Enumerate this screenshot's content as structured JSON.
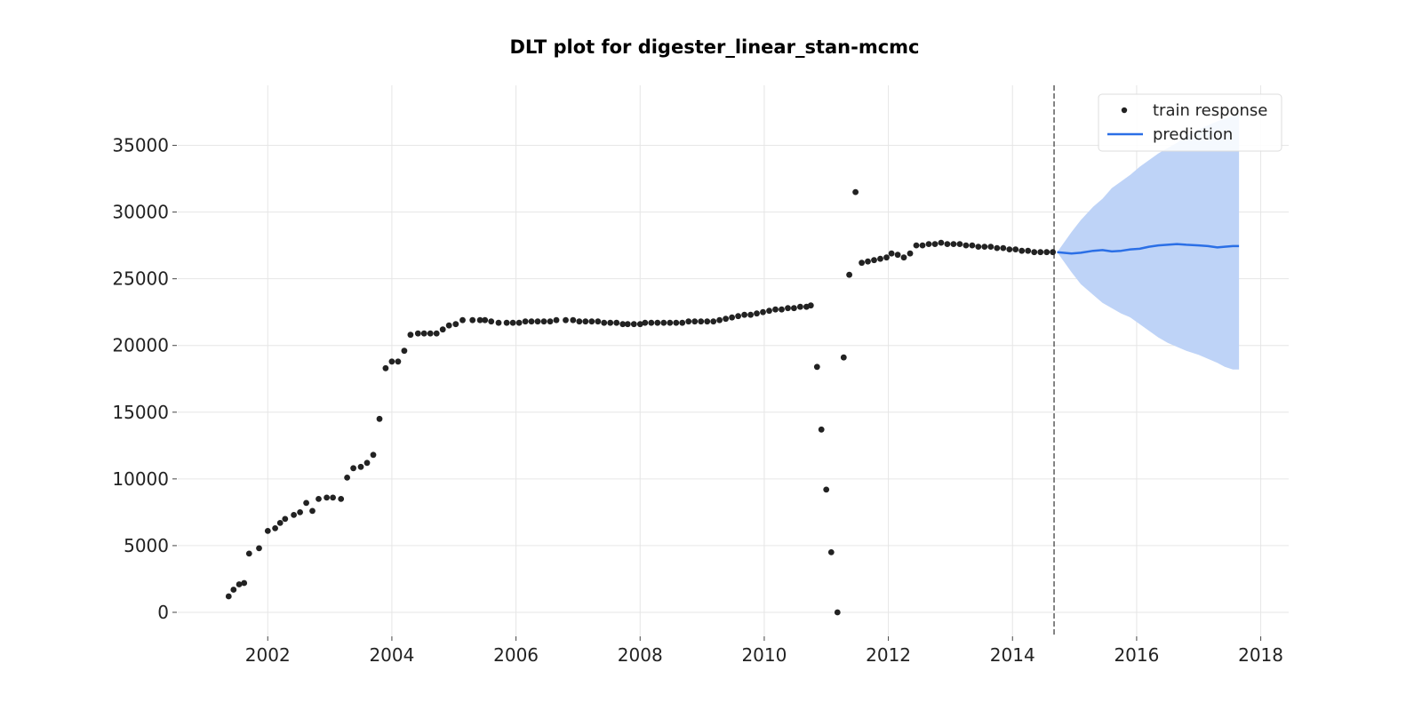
{
  "chart_data": {
    "type": "scatter",
    "title": "DLT plot for digester_linear_stan-mcmc",
    "xlabel": "",
    "ylabel": "",
    "xlim": [
      2000.55,
      2018.45
    ],
    "ylim": [
      -1800,
      39500
    ],
    "x_ticks": [
      2002,
      2004,
      2006,
      2008,
      2010,
      2012,
      2014,
      2016,
      2018
    ],
    "y_ticks": [
      0,
      5000,
      10000,
      15000,
      20000,
      25000,
      30000,
      35000
    ],
    "grid": true,
    "legend_position": "top-right",
    "train_end_x": 2014.67,
    "colors": {
      "train_points": "#222222",
      "prediction_line": "#2b6fe6",
      "prediction_band": "#bed3f7",
      "grid": "#e6e6e6",
      "cutoff_line": "#666666"
    },
    "series": [
      {
        "name": "train response",
        "kind": "scatter",
        "x": [
          2001.37,
          2001.45,
          2001.54,
          2001.62,
          2001.7,
          2001.86,
          2002.0,
          2002.12,
          2002.2,
          2002.28,
          2002.42,
          2002.52,
          2002.62,
          2002.72,
          2002.82,
          2002.95,
          2003.05,
          2003.18,
          2003.28,
          2003.38,
          2003.5,
          2003.6,
          2003.7,
          2003.8,
          2003.9,
          2004.0,
          2004.1,
          2004.2,
          2004.3,
          2004.42,
          2004.52,
          2004.62,
          2004.72,
          2004.82,
          2004.92,
          2005.03,
          2005.14,
          2005.3,
          2005.42,
          2005.5,
          2005.6,
          2005.72,
          2005.85,
          2005.95,
          2006.05,
          2006.15,
          2006.25,
          2006.35,
          2006.45,
          2006.55,
          2006.65,
          2006.8,
          2006.92,
          2007.02,
          2007.12,
          2007.22,
          2007.32,
          2007.42,
          2007.52,
          2007.62,
          2007.72,
          2007.8,
          2007.9,
          2008.0,
          2008.08,
          2008.18,
          2008.28,
          2008.38,
          2008.48,
          2008.58,
          2008.68,
          2008.78,
          2008.88,
          2008.98,
          2009.08,
          2009.18,
          2009.28,
          2009.38,
          2009.48,
          2009.58,
          2009.68,
          2009.78,
          2009.88,
          2009.98,
          2010.08,
          2010.18,
          2010.28,
          2010.38,
          2010.48,
          2010.58,
          2010.68,
          2010.75,
          2010.85,
          2010.92,
          2011.0,
          2011.08,
          2011.18,
          2011.28,
          2011.37,
          2011.47,
          2011.57,
          2011.67,
          2011.77,
          2011.87,
          2011.97,
          2012.05,
          2012.15,
          2012.25,
          2012.35,
          2012.45,
          2012.55,
          2012.65,
          2012.75,
          2012.85,
          2012.95,
          2013.05,
          2013.15,
          2013.25,
          2013.35,
          2013.45,
          2013.55,
          2013.65,
          2013.75,
          2013.85,
          2013.95,
          2014.05,
          2014.15,
          2014.25,
          2014.35,
          2014.45,
          2014.55,
          2014.65
        ],
        "y": [
          1200,
          1700,
          2100,
          2200,
          4400,
          4800,
          6100,
          6300,
          6700,
          7000,
          7300,
          7500,
          8200,
          7600,
          8500,
          8600,
          8600,
          8500,
          10100,
          10800,
          10900,
          11200,
          11800,
          14500,
          18300,
          18800,
          18800,
          19600,
          20800,
          20900,
          20900,
          20900,
          20900,
          21200,
          21500,
          21600,
          21900,
          21900,
          21900,
          21900,
          21800,
          21700,
          21700,
          21700,
          21700,
          21800,
          21800,
          21800,
          21800,
          21800,
          21900,
          21900,
          21900,
          21800,
          21800,
          21800,
          21800,
          21700,
          21700,
          21700,
          21600,
          21600,
          21600,
          21600,
          21700,
          21700,
          21700,
          21700,
          21700,
          21700,
          21700,
          21800,
          21800,
          21800,
          21800,
          21800,
          21900,
          22000,
          22100,
          22200,
          22300,
          22300,
          22400,
          22500,
          22600,
          22700,
          22700,
          22800,
          22800,
          22900,
          22900,
          23000,
          18400,
          13700,
          9200,
          4500,
          0,
          19100,
          25300,
          31500,
          26200,
          26300,
          26400,
          26500,
          26600,
          26900,
          26800,
          26600,
          26900,
          27500,
          27500,
          27600,
          27600,
          27700,
          27600,
          27600,
          27600,
          27500,
          27500,
          27400,
          27400,
          27400,
          27300,
          27300,
          27200,
          27200,
          27100,
          27100,
          27000,
          27000,
          27000,
          27000
        ],
        "color": "#222222"
      },
      {
        "name": "prediction",
        "kind": "line",
        "x": [
          2014.72,
          2014.95,
          2015.1,
          2015.3,
          2015.45,
          2015.6,
          2015.75,
          2015.9,
          2016.05,
          2016.2,
          2016.35,
          2016.5,
          2016.65,
          2016.8,
          2017.0,
          2017.15,
          2017.3,
          2017.42,
          2017.55,
          2017.65
        ],
        "y": [
          27000,
          26900,
          26950,
          27100,
          27150,
          27050,
          27100,
          27200,
          27250,
          27400,
          27500,
          27550,
          27600,
          27550,
          27500,
          27450,
          27350,
          27400,
          27450,
          27450
        ],
        "upper": [
          27000,
          28500,
          29400,
          30400,
          31000,
          31800,
          32300,
          32800,
          33400,
          33900,
          34400,
          34800,
          35200,
          35700,
          36200,
          36500,
          36800,
          37000,
          37200,
          37400
        ],
        "lower": [
          27000,
          25500,
          24600,
          23800,
          23200,
          22800,
          22400,
          22100,
          21600,
          21100,
          20600,
          20200,
          19900,
          19600,
          19300,
          19000,
          18700,
          18400,
          18200,
          18200
        ],
        "color": "#2b6fe6"
      }
    ]
  }
}
